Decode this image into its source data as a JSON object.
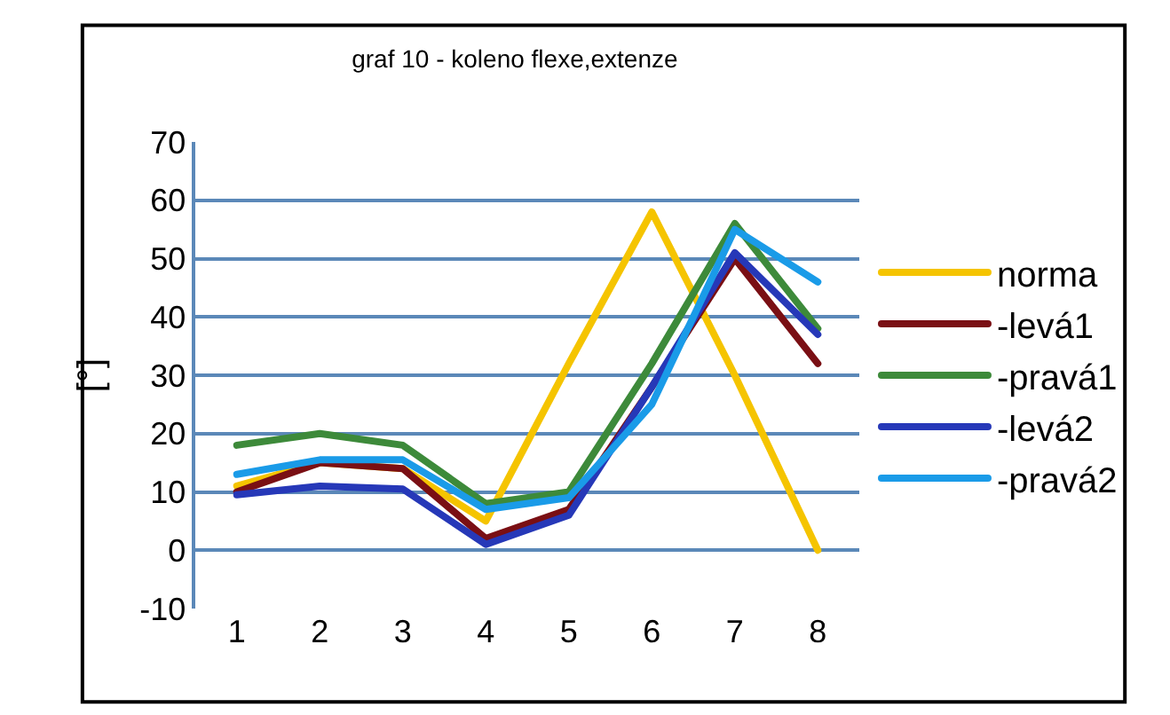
{
  "chart_data": {
    "type": "line",
    "title": "graf 10 - koleno flexe,extenze",
    "ylabel": "[°]",
    "categories": [
      "1",
      "2",
      "3",
      "4",
      "5",
      "6",
      "7",
      "8"
    ],
    "series": [
      {
        "name": "norma",
        "color": "#f5c400",
        "values": [
          11,
          15,
          14,
          5,
          32,
          58,
          30,
          0
        ]
      },
      {
        "name": "-levá1",
        "color": "#7a0f14",
        "values": [
          10,
          15,
          14,
          2,
          7,
          28,
          50,
          32
        ]
      },
      {
        "name": "-pravá1",
        "color": "#3d8a3a",
        "values": [
          18,
          20,
          18,
          8,
          10,
          32,
          56,
          38
        ]
      },
      {
        "name": "-levá2",
        "color": "#2638b8",
        "values": [
          9.5,
          11,
          10.5,
          1,
          6,
          28,
          51,
          37
        ]
      },
      {
        "name": "-pravá2",
        "color": "#1a9be8",
        "values": [
          13,
          15.5,
          15.5,
          7,
          9,
          25,
          55,
          46
        ]
      }
    ],
    "ylim": [
      -10,
      70
    ],
    "yticks": [
      -10,
      0,
      10,
      20,
      30,
      40,
      50,
      60,
      70
    ],
    "grid": "y",
    "legend": "right",
    "marker": "none",
    "line_style": "solid"
  }
}
